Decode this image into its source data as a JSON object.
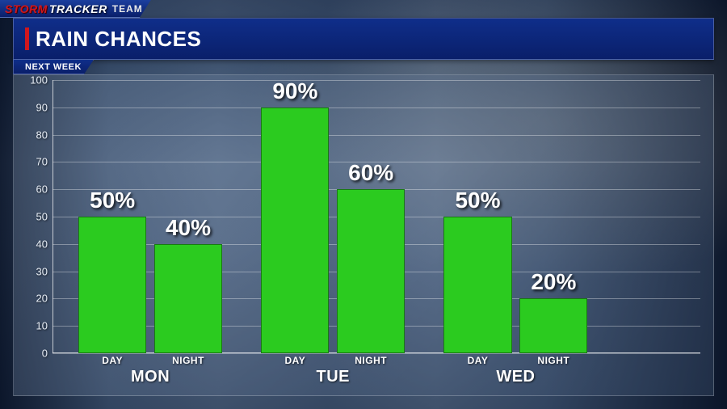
{
  "branding": {
    "storm": "STORM",
    "tracker": "TRACKER",
    "team": "TEAM"
  },
  "header": {
    "title": "RAIN CHANCES",
    "subtitle": "NEXT WEEK",
    "accent_color": "#d0171e",
    "bar_gradient_top": "#0f2e8a",
    "bar_gradient_bottom": "#0a1f6a"
  },
  "chart": {
    "type": "bar",
    "ylim": [
      0,
      100
    ],
    "ytick_step": 10,
    "yticks": [
      0,
      10,
      20,
      30,
      40,
      50,
      60,
      70,
      80,
      90,
      100
    ],
    "grid_color": "rgba(255,255,255,0.35)",
    "axis_color": "rgba(255,255,255,0.7)",
    "tick_label_color": "#e8eef6",
    "tick_fontsize": 13,
    "bar_color": "#2bcb1f",
    "bar_border_color": "rgba(0,0,0,0.4)",
    "value_suffix": "%",
    "value_label_fontsize": 28,
    "value_label_color": "#ffffff",
    "period_label_fontsize": 12,
    "day_label_fontsize": 20,
    "bar_width_pct": 10.5,
    "group_gap_pct": 6.0,
    "pair_gap_pct": 1.2,
    "left_pad_pct": 4.0,
    "groups": [
      {
        "day": "MON",
        "bars": [
          {
            "period": "DAY",
            "value": 50
          },
          {
            "period": "NIGHT",
            "value": 40
          }
        ]
      },
      {
        "day": "TUE",
        "bars": [
          {
            "period": "DAY",
            "value": 90
          },
          {
            "period": "NIGHT",
            "value": 60
          }
        ]
      },
      {
        "day": "WED",
        "bars": [
          {
            "period": "DAY",
            "value": 50
          },
          {
            "period": "NIGHT",
            "value": 20
          }
        ]
      }
    ]
  }
}
